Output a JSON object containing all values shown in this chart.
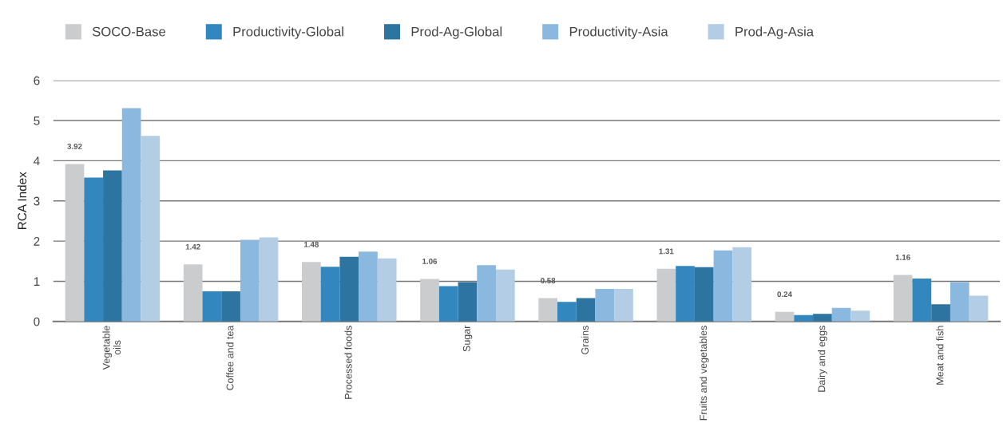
{
  "chart_data": {
    "type": "bar",
    "ylabel": "RCA Index",
    "categories": [
      "Vegetable\noils",
      "Coffee and tea",
      "Processed foods",
      "Sugar",
      "Grains",
      "Fruits and vegetables",
      "Dairy and eggs",
      "Meat and fish"
    ],
    "series": [
      {
        "name": "SOCO-Base",
        "color": "#cbcccd",
        "values": [
          3.92,
          1.42,
          1.48,
          1.06,
          0.58,
          1.31,
          0.24,
          1.16
        ],
        "value_labels": [
          "3.92",
          "1.42",
          "1.48",
          "1.06",
          "0.58",
          "1.31",
          "0.24",
          "1.16"
        ]
      },
      {
        "name": "Productivity-Global",
        "color": "#3187be",
        "values": [
          3.58,
          0.75,
          1.36,
          0.88,
          0.49,
          1.38,
          0.16,
          1.07
        ]
      },
      {
        "name": "Prod-Ag-Global",
        "color": "#2e74a0",
        "values": [
          3.76,
          0.75,
          1.61,
          0.98,
          0.58,
          1.35,
          0.19,
          0.43
        ]
      },
      {
        "name": "Productivity-Asia",
        "color": "#8ab8de",
        "values": [
          5.31,
          2.03,
          1.74,
          1.4,
          0.81,
          1.77,
          0.34,
          0.98
        ]
      },
      {
        "name": "Prod-Ag-Asia",
        "color": "#b3cde4",
        "values": [
          4.62,
          2.09,
          1.57,
          1.29,
          0.81,
          1.85,
          0.27,
          0.64
        ]
      }
    ],
    "ylim": [
      0,
      6
    ],
    "yticks": [
      0,
      1,
      2,
      3,
      4,
      5,
      6
    ],
    "grid": "y",
    "legend": "top left"
  }
}
